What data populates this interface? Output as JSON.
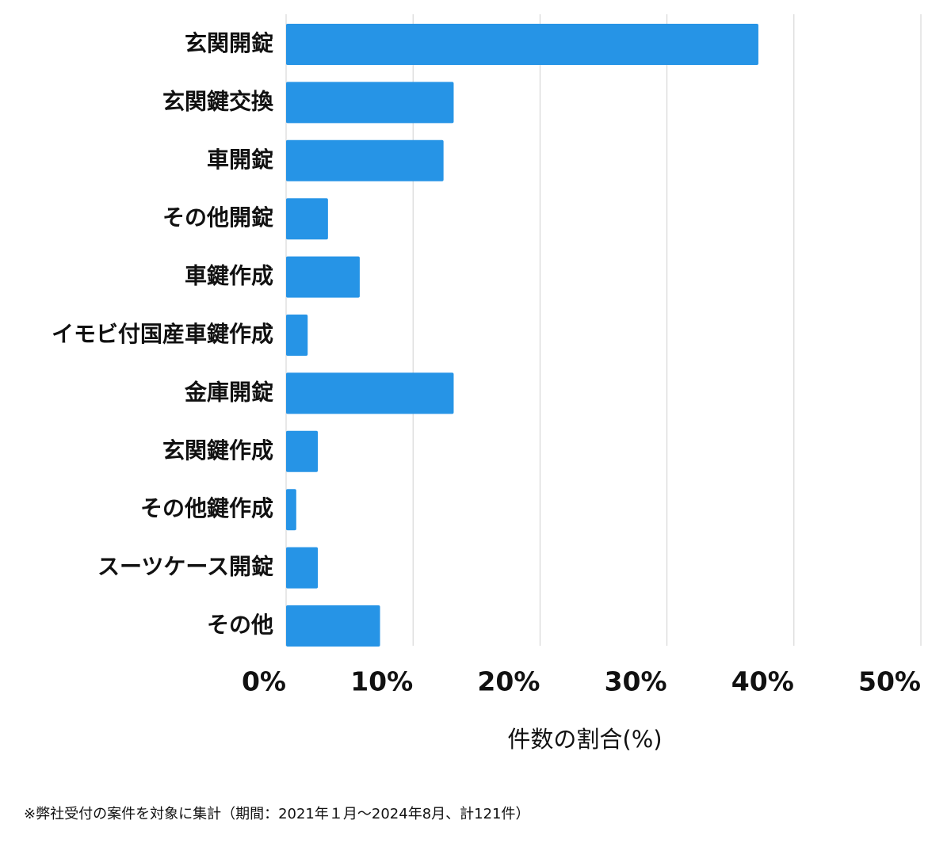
{
  "chart_data": {
    "type": "bar",
    "orientation": "horizontal",
    "categories": [
      "玄関開錠",
      "玄関鍵交換",
      "車開錠",
      "その他開錠",
      "車鍵作成",
      "イモビ付国産車鍵作成",
      "金庫開錠",
      "玄関鍵作成",
      "その他鍵作成",
      "スーツケース開錠",
      "その他"
    ],
    "values": [
      37.2,
      13.2,
      12.4,
      3.3,
      5.8,
      1.7,
      13.2,
      2.5,
      0.8,
      2.5,
      7.4
    ],
    "color": "#2694e6",
    "xlim": [
      0,
      50
    ],
    "xticks": [
      {
        "value": 0,
        "label": "0%"
      },
      {
        "value": 10,
        "label": "10%"
      },
      {
        "value": 20,
        "label": "20%"
      },
      {
        "value": 30,
        "label": "30%"
      },
      {
        "value": 40,
        "label": "40%"
      },
      {
        "value": 50,
        "label": "50%"
      }
    ],
    "grid": true,
    "x_label": "件数の割合(%)",
    "footnote": "※弊社受付の案件を対象に集計（期間：2021年１月〜2024年8月、計121件）"
  }
}
